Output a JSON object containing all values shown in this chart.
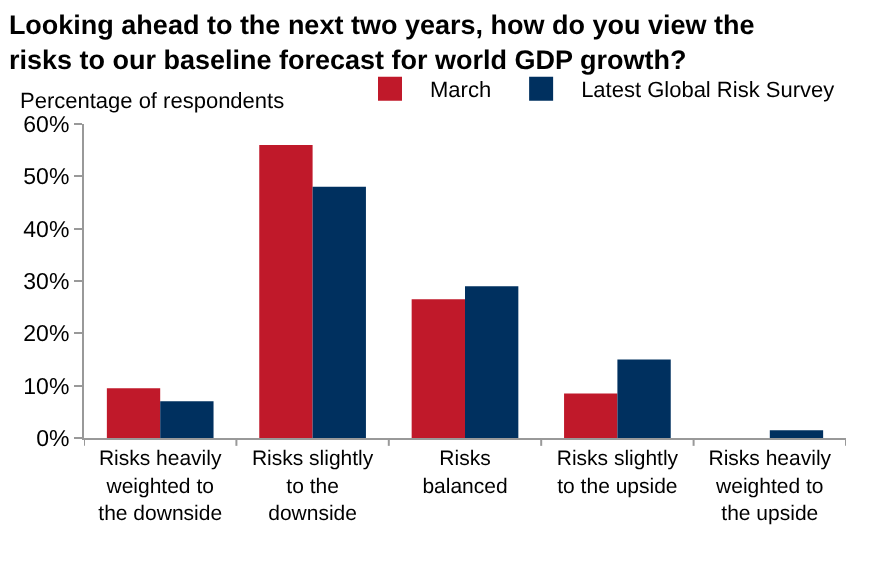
{
  "chart_data": {
    "type": "bar",
    "title": "Looking ahead to the next two years, how do you view the\nrisks to our baseline forecast for world GDP growth?",
    "ylabel": "Percentage of respondents",
    "categories": [
      "Risks heavily\nweighted to\nthe downside",
      "Risks slightly\nto the\ndownside",
      "Risks\nbalanced",
      "Risks slightly\nto the upside",
      "Risks heavily\nweighted to\nthe upside"
    ],
    "series": [
      {
        "name": "March",
        "color": "#c0192a",
        "values": [
          9.5,
          56,
          26.5,
          8.5,
          0
        ]
      },
      {
        "name": "Latest Global Risk Survey",
        "color": "#00305f",
        "values": [
          7,
          48,
          29,
          15,
          1.5
        ]
      }
    ],
    "ylim": [
      0,
      60
    ],
    "yticks": [
      {
        "value": 0,
        "label": "0%"
      },
      {
        "value": 10,
        "label": "10%"
      },
      {
        "value": 20,
        "label": "20%"
      },
      {
        "value": 30,
        "label": "30%"
      },
      {
        "value": 40,
        "label": "40%"
      },
      {
        "value": 50,
        "label": "50%"
      },
      {
        "value": 60,
        "label": "60%"
      }
    ],
    "legend": "top right"
  }
}
